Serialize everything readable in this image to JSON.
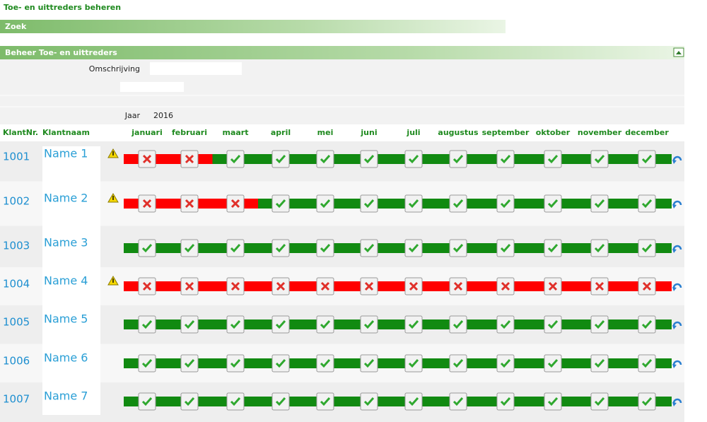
{
  "header": {
    "title": "Toe- en uittreders beheren"
  },
  "search_bar": {
    "label": "Zoek"
  },
  "section": {
    "title": "Beheer Toe- en uittreders"
  },
  "form": {
    "description_label": "Omschrijving",
    "year_label": "Jaar",
    "year_value": "2016"
  },
  "table": {
    "columns": {
      "id": "KlantNr.",
      "name": "Klantnaam"
    },
    "months": [
      "januari",
      "februari",
      "maart",
      "april",
      "mei",
      "juni",
      "juli",
      "augustus",
      "september",
      "oktober",
      "november",
      "december"
    ],
    "rows": [
      {
        "id": "1001",
        "name": "Name 1",
        "warning": true,
        "checked": [
          false,
          false,
          true,
          true,
          true,
          true,
          true,
          true,
          true,
          true,
          true,
          true
        ]
      },
      {
        "id": "1002",
        "name": "Name 2",
        "warning": true,
        "checked": [
          false,
          false,
          false,
          true,
          true,
          true,
          true,
          true,
          true,
          true,
          true,
          true
        ]
      },
      {
        "id": "1003",
        "name": "Name 3",
        "warning": false,
        "checked": [
          true,
          true,
          true,
          true,
          true,
          true,
          true,
          true,
          true,
          true,
          true,
          true
        ]
      },
      {
        "id": "1004",
        "name": "Name 4",
        "warning": true,
        "checked": [
          false,
          false,
          false,
          false,
          false,
          false,
          false,
          false,
          false,
          false,
          false,
          false
        ]
      },
      {
        "id": "1005",
        "name": "Name 5",
        "warning": false,
        "checked": [
          true,
          true,
          true,
          true,
          true,
          true,
          true,
          true,
          true,
          true,
          true,
          true
        ]
      },
      {
        "id": "1006",
        "name": "Name 6",
        "warning": false,
        "checked": [
          true,
          true,
          true,
          true,
          true,
          true,
          true,
          true,
          true,
          true,
          true,
          true
        ]
      },
      {
        "id": "1007",
        "name": "Name 7",
        "warning": false,
        "checked": [
          true,
          true,
          true,
          true,
          true,
          true,
          true,
          true,
          true,
          true,
          true,
          true
        ]
      }
    ]
  }
}
